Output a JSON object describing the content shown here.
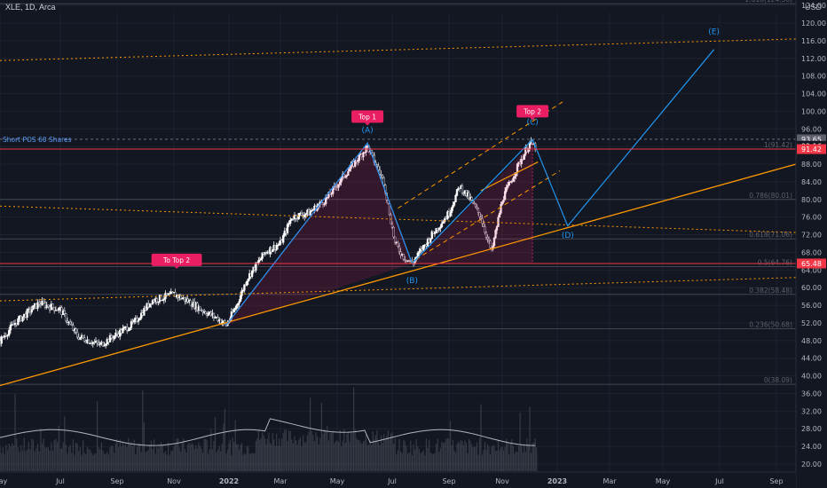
{
  "header": {
    "title": "XLE, 1D, Arca",
    "price_axis_label": "USD"
  },
  "chart_data": {
    "type": "candlestick",
    "symbol": "XLE",
    "interval": "1D",
    "exchange": "Arca",
    "currency": "USD",
    "x_ticks": [
      "May",
      "Jul",
      "Sep",
      "Nov",
      "2022",
      "Mar",
      "May",
      "Jul",
      "Sep",
      "Nov",
      "2023",
      "Mar",
      "May",
      "Jul",
      "Sep"
    ],
    "y_ticks": [
      20,
      24,
      28,
      32,
      36,
      40,
      44,
      48,
      52,
      56,
      60,
      64,
      68,
      72,
      76,
      80,
      84,
      88,
      92,
      96,
      100,
      104,
      108,
      112,
      116,
      120,
      124
    ],
    "ylim": [
      18,
      125
    ],
    "price_labels": [
      {
        "text": "93.65",
        "value": 93.65,
        "color": "#5d606b"
      },
      {
        "text": "92.16",
        "value": 92.16,
        "color": "#131722"
      },
      {
        "text": "91.42",
        "value": 91.42,
        "color": "#f23645"
      },
      {
        "text": "65.48",
        "value": 65.48,
        "color": "#f23645"
      }
    ],
    "fib_levels": [
      {
        "label": "1.618(124.38)",
        "value": 124.38
      },
      {
        "label": "1(91.42)",
        "value": 91.42
      },
      {
        "label": "0.786(80.01)",
        "value": 80.01
      },
      {
        "label": "0.618(71.06)",
        "value": 71.06
      },
      {
        "label": "0.5(64.76)",
        "value": 64.76
      },
      {
        "label": "0.382(58.48)",
        "value": 58.48
      },
      {
        "label": "0.236(50.68)",
        "value": 50.68
      },
      {
        "label": "0(38.09)",
        "value": 38.09
      }
    ],
    "horizontal_lines": [
      {
        "label": "Short POS 60 Shares",
        "value": 93.65,
        "color": "#5b9cf6"
      },
      {
        "value": 91.42,
        "color": "#f23645"
      },
      {
        "value": 65.48,
        "color": "#f23645"
      }
    ],
    "annotations": [
      {
        "text": "Top 1",
        "type": "badge"
      },
      {
        "text": "Top 2",
        "type": "badge"
      },
      {
        "text": "To  Top 2",
        "type": "badge"
      }
    ],
    "wave_labels": [
      "(A)",
      "(B)",
      "(C)",
      "(D)",
      "(E)"
    ],
    "colors": {
      "up": "#ffffff",
      "down": "#d1d4dc",
      "badge": "#e91e63",
      "wave": "#2196f3",
      "trend": "#ff9800",
      "background": "#131722"
    }
  }
}
